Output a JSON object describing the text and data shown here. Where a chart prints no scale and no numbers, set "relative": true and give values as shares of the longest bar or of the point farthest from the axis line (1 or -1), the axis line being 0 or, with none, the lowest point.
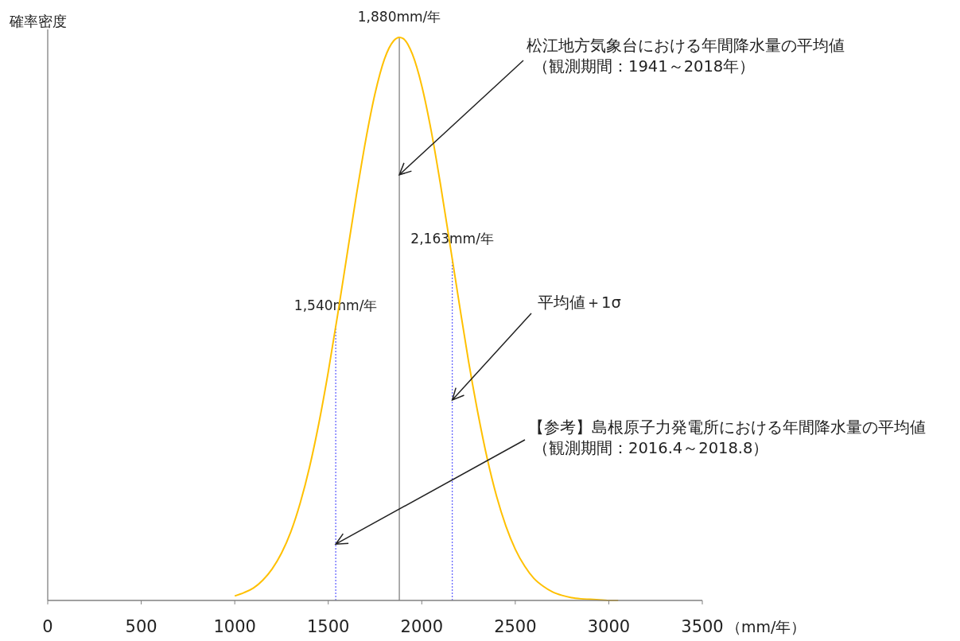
{
  "chart_data": {
    "type": "line",
    "relative": true,
    "ylabel": "確率密度",
    "xlabel": "（mm/年）",
    "xlim": [
      0,
      3500
    ],
    "xticks": [
      0,
      500,
      1000,
      1500,
      2000,
      2500,
      3000,
      3500
    ],
    "grid": false,
    "marker": "none",
    "line_style": "solid",
    "series": [
      {
        "color": "#ffc000",
        "x": [
          1000,
          1050,
          1100,
          1150,
          1200,
          1250,
          1300,
          1350,
          1400,
          1450,
          1500,
          1550,
          1600,
          1650,
          1700,
          1750,
          1800,
          1850,
          1880,
          1900,
          1950,
          2000,
          2050,
          2100,
          2150,
          2200,
          2250,
          2300,
          2350,
          2400,
          2450,
          2500,
          2550,
          2600,
          2650,
          2700,
          2750,
          2800,
          2850,
          2900,
          2950,
          3000,
          3050
        ],
        "values": [
          0.008,
          0.014,
          0.022,
          0.036,
          0.056,
          0.084,
          0.122,
          0.173,
          0.237,
          0.315,
          0.406,
          0.507,
          0.613,
          0.719,
          0.817,
          0.9,
          0.961,
          0.994,
          1,
          0.998,
          0.97,
          0.914,
          0.835,
          0.739,
          0.634,
          0.528,
          0.425,
          0.333,
          0.252,
          0.185,
          0.132,
          0.091,
          0.061,
          0.039,
          0.025,
          0.015,
          0.009,
          0.005,
          0.003,
          0.002,
          0.001,
          0,
          0
        ]
      }
    ],
    "ref_lines": [
      {
        "axis": "x",
        "value": 1880,
        "label": "1,880mm/年",
        "color": "#808080",
        "line_style": "solid"
      },
      {
        "axis": "x",
        "value": 1540,
        "label": "1,540mm/年",
        "color": "#6666ff",
        "line_style": "dotted"
      },
      {
        "axis": "x",
        "value": 2163,
        "label": "2,163mm/年",
        "color": "#6666ff",
        "line_style": "dotted"
      }
    ],
    "annotations": [
      {
        "text": "松江地方気象台における年間降水量の平均値",
        "x": 1880,
        "y": 0.756
      },
      "（観測期間：1941～2018年）",
      {
        "text": "平均値＋1σ",
        "x": 2163,
        "y": 0.356
      },
      {
        "text": "【参考】島根原子力発電所における年間降水量の平均値",
        "x": 1540,
        "y": 0.1
      },
      "（観測期間：2016.4～2018.8）"
    ]
  }
}
